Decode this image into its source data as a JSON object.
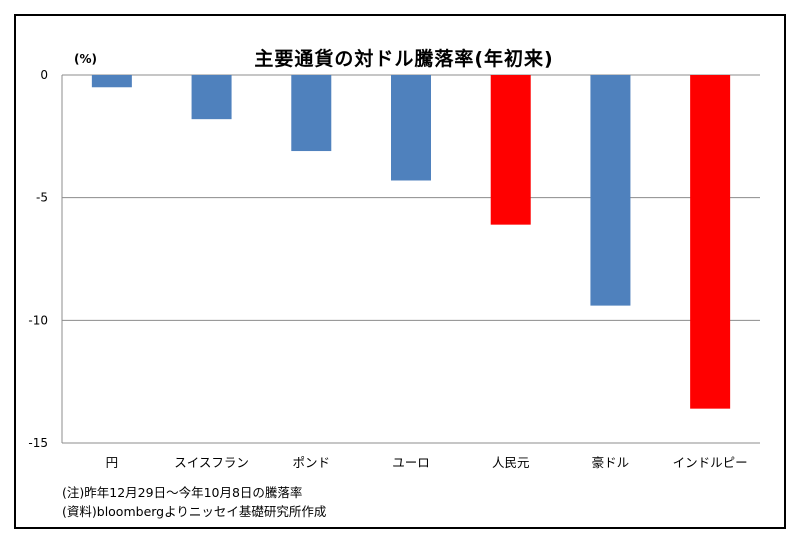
{
  "chart_data": {
    "type": "bar",
    "title": "主要通貨の対ドル騰落率(年初来)",
    "ylabel": "(%)",
    "categories": [
      "円",
      "スイスフラン",
      "ポンド",
      "ユーロ",
      "人民元",
      "豪ドル",
      "インドルピー"
    ],
    "values": [
      -0.5,
      -1.8,
      -3.1,
      -4.3,
      -6.1,
      -9.4,
      -13.6
    ],
    "colors": [
      "#4F81BD",
      "#4F81BD",
      "#4F81BD",
      "#4F81BD",
      "#FF0000",
      "#4F81BD",
      "#FF0000"
    ],
    "ylim": [
      -15,
      0
    ],
    "yticks": [
      0,
      -5,
      -10,
      -15
    ],
    "grid": true
  },
  "notes": [
    "(注)昨年12月29日～今年10月8日の騰落率",
    "(資料)bloombergよりニッセイ基礎研究所作成"
  ]
}
